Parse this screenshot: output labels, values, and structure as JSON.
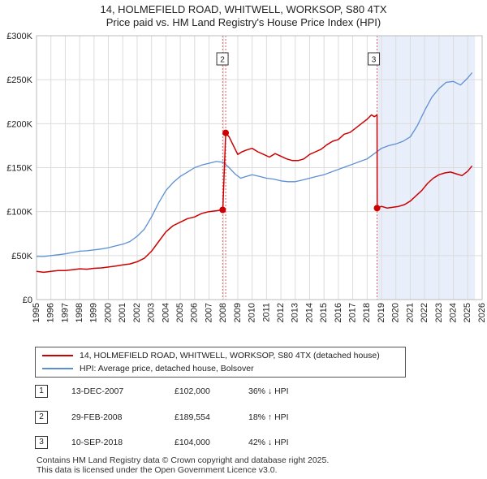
{
  "title": {
    "line1": "14, HOLMEFIELD ROAD, WHITWELL, WORKSOP, S80 4TX",
    "line2": "Price paid vs. HM Land Registry's House Price Index (HPI)"
  },
  "chart_data": {
    "type": "line",
    "title": "14, HOLMEFIELD ROAD, WHITWELL, WORKSOP, S80 4TX — Price paid vs. HM Land Registry's House Price Index (HPI)",
    "xlim": [
      1995,
      2026
    ],
    "ylim": [
      0,
      300000
    ],
    "x_ticks": [
      1995,
      1996,
      1997,
      1998,
      1999,
      2000,
      2001,
      2002,
      2003,
      2004,
      2005,
      2006,
      2007,
      2008,
      2009,
      2010,
      2011,
      2012,
      2013,
      2014,
      2015,
      2016,
      2017,
      2018,
      2019,
      2020,
      2021,
      2022,
      2023,
      2024,
      2025,
      2026
    ],
    "y_ticks": [
      {
        "value": 0,
        "label": "£0"
      },
      {
        "value": 50000,
        "label": "£50K"
      },
      {
        "value": 100000,
        "label": "£100K"
      },
      {
        "value": 150000,
        "label": "£150K"
      },
      {
        "value": 200000,
        "label": "£200K"
      },
      {
        "value": 250000,
        "label": "£250K"
      },
      {
        "value": 300000,
        "label": "£300K"
      }
    ],
    "grid": true,
    "shaded_region": {
      "from": 2018.69,
      "to": 2025.5
    },
    "series": [
      {
        "name": "14, HOLMEFIELD ROAD, WHITWELL, WORKSOP, S80 4TX (detached house)",
        "color": "#cc0000",
        "x": [
          1995.0,
          1995.5,
          1996.0,
          1996.5,
          1997.0,
          1997.5,
          1998.0,
          1998.5,
          1999.0,
          1999.5,
          2000.0,
          2000.5,
          2001.0,
          2001.5,
          2002.0,
          2002.5,
          2003.0,
          2003.5,
          2004.0,
          2004.5,
          2005.0,
          2005.5,
          2006.0,
          2006.5,
          2007.0,
          2007.5,
          2007.95,
          2007.96,
          2008.16,
          2008.17,
          2008.4,
          2008.7,
          2009.0,
          2009.3,
          2009.6,
          2010.0,
          2010.4,
          2010.8,
          2011.2,
          2011.6,
          2012.0,
          2012.4,
          2012.8,
          2013.2,
          2013.6,
          2014.0,
          2014.4,
          2014.8,
          2015.2,
          2015.6,
          2016.0,
          2016.4,
          2016.8,
          2017.2,
          2017.6,
          2018.0,
          2018.3,
          2018.5,
          2018.69,
          2018.7,
          2019.0,
          2019.4,
          2019.8,
          2020.2,
          2020.6,
          2021.0,
          2021.4,
          2021.8,
          2022.2,
          2022.6,
          2023.0,
          2023.4,
          2023.8,
          2024.2,
          2024.6,
          2025.0,
          2025.3
        ],
        "values": [
          32000,
          31000,
          32000,
          33000,
          33000,
          34000,
          35000,
          34500,
          35500,
          36000,
          37000,
          38000,
          39500,
          40500,
          43000,
          47000,
          55000,
          66000,
          77000,
          84000,
          88000,
          92000,
          94000,
          98000,
          100000,
          101000,
          102000,
          102000,
          189554,
          189554,
          185000,
          175000,
          165000,
          168000,
          170000,
          172000,
          168000,
          165000,
          162000,
          166000,
          163000,
          160000,
          158000,
          158000,
          160000,
          165000,
          168000,
          171000,
          176000,
          180000,
          182000,
          188000,
          190000,
          195000,
          200000,
          205000,
          210000,
          208000,
          210000,
          104000,
          106000,
          104000,
          105000,
          106000,
          108000,
          112000,
          118000,
          124000,
          132000,
          138000,
          142000,
          144000,
          145000,
          143000,
          141000,
          146000,
          152000
        ]
      },
      {
        "name": "HPI: Average price, detached house, Bolsover",
        "color": "#5b8fd4",
        "x": [
          1995.0,
          1995.5,
          1996.0,
          1996.5,
          1997.0,
          1997.5,
          1998.0,
          1998.5,
          1999.0,
          1999.5,
          2000.0,
          2000.5,
          2001.0,
          2001.5,
          2002.0,
          2002.5,
          2003.0,
          2003.5,
          2004.0,
          2004.5,
          2005.0,
          2005.5,
          2006.0,
          2006.5,
          2007.0,
          2007.5,
          2008.0,
          2008.4,
          2008.8,
          2009.2,
          2009.6,
          2010.0,
          2010.5,
          2011.0,
          2011.5,
          2012.0,
          2012.5,
          2013.0,
          2013.5,
          2014.0,
          2014.5,
          2015.0,
          2015.5,
          2016.0,
          2016.5,
          2017.0,
          2017.5,
          2018.0,
          2018.5,
          2019.0,
          2019.5,
          2020.0,
          2020.5,
          2021.0,
          2021.5,
          2022.0,
          2022.5,
          2023.0,
          2023.5,
          2024.0,
          2024.5,
          2025.0,
          2025.3
        ],
        "values": [
          49000,
          49000,
          50000,
          51000,
          52000,
          53500,
          55000,
          55500,
          56500,
          57500,
          59000,
          61000,
          63000,
          66000,
          72000,
          80000,
          94000,
          110000,
          124000,
          133000,
          140000,
          145000,
          150000,
          153000,
          155000,
          157000,
          156000,
          150000,
          143000,
          138000,
          140000,
          142000,
          140000,
          138000,
          137000,
          135000,
          134000,
          134000,
          136000,
          138000,
          140000,
          142000,
          145000,
          148000,
          151000,
          154000,
          157000,
          160000,
          166000,
          172000,
          175000,
          177000,
          180000,
          185000,
          198000,
          215000,
          230000,
          240000,
          247000,
          248000,
          244000,
          252000,
          258000
        ]
      }
    ],
    "events": [
      {
        "id": "1",
        "year": 2007.95,
        "value": 102000,
        "show_label_on_chart": false
      },
      {
        "id": "2",
        "year": 2008.16,
        "value": 189554,
        "show_label_on_chart": true
      },
      {
        "id": "3",
        "year": 2018.69,
        "value": 104000,
        "show_label_on_chart": true
      }
    ]
  },
  "legend": {
    "items": [
      {
        "label": "14, HOLMEFIELD ROAD, WHITWELL, WORKSOP, S80 4TX (detached house)",
        "color": "#cc0000"
      },
      {
        "label": "HPI: Average price, detached house, Bolsover",
        "color": "#5b8fd4"
      }
    ]
  },
  "transactions": [
    {
      "id": "1",
      "date": "13-DEC-2007",
      "price": "£102,000",
      "delta": "36% ↓ HPI"
    },
    {
      "id": "2",
      "date": "29-FEB-2008",
      "price": "£189,554",
      "delta": "18% ↑ HPI"
    },
    {
      "id": "3",
      "date": "10-SEP-2018",
      "price": "£104,000",
      "delta": "42% ↓ HPI"
    }
  ],
  "footer": {
    "line1": "Contains HM Land Registry data © Crown copyright and database right 2025.",
    "line2": "This data is licensed under the Open Government Licence v3.0."
  }
}
